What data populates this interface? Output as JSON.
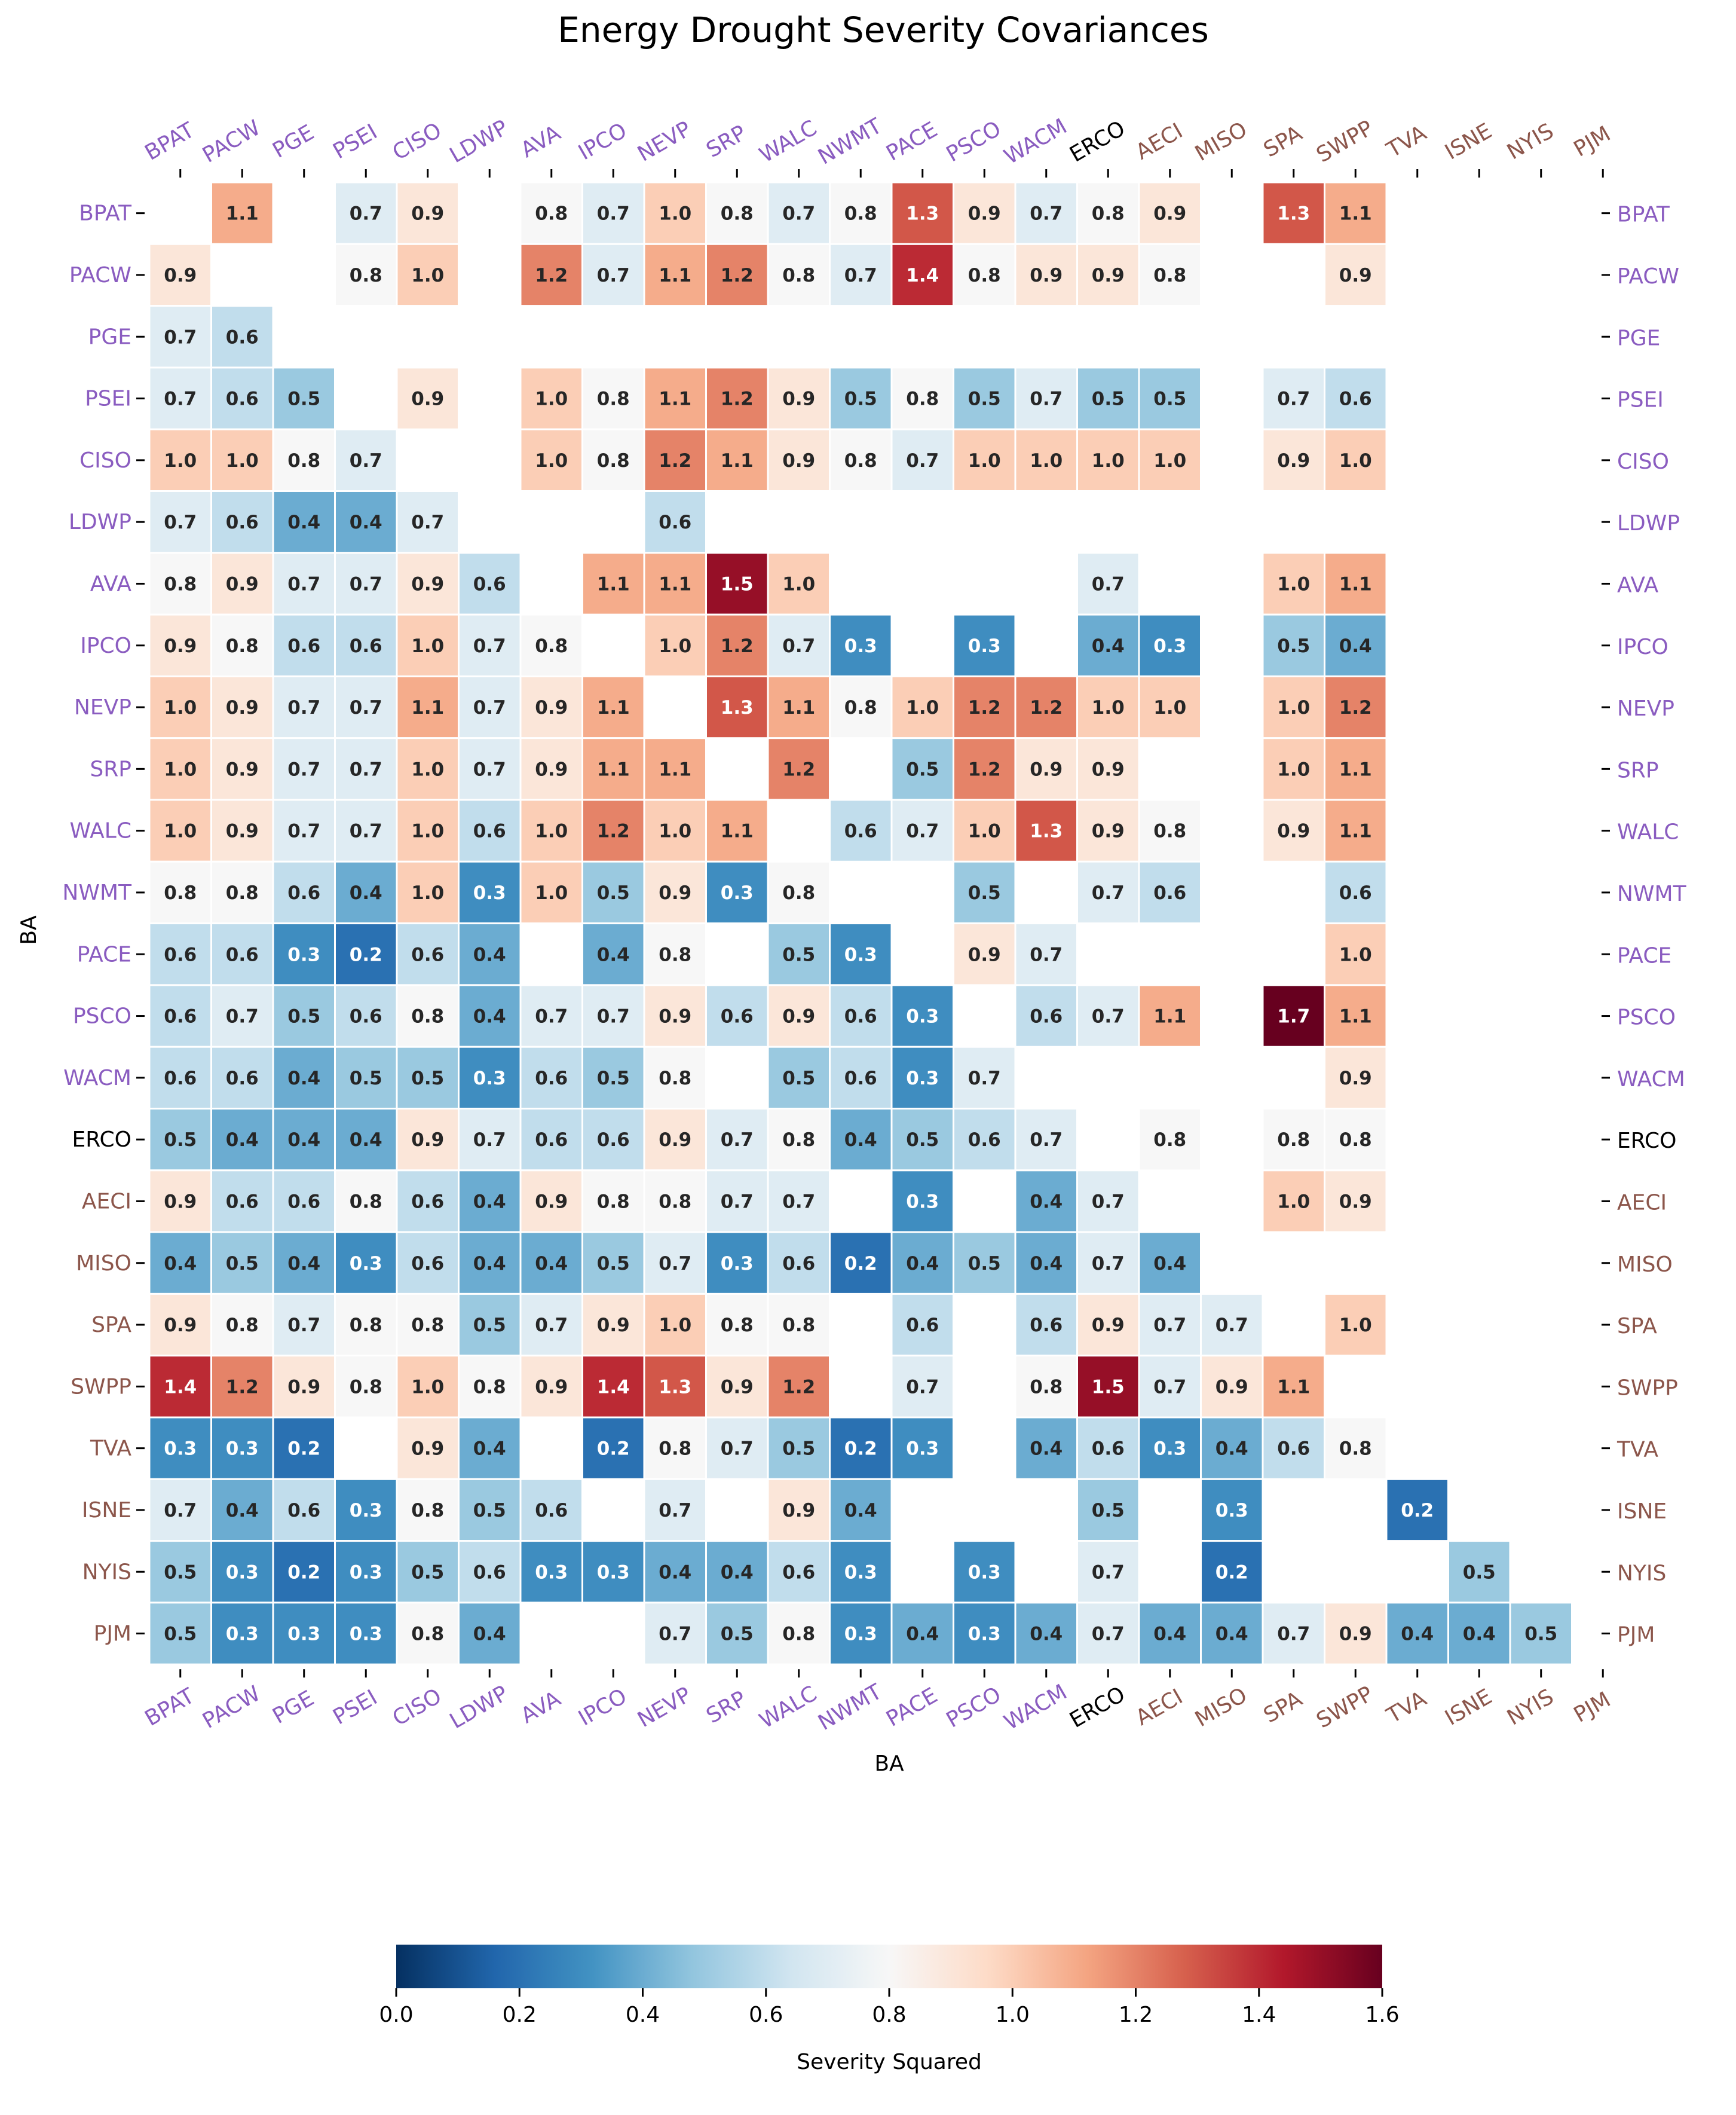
{
  "chart_data": {
    "type": "heatmap",
    "title": "Energy Drought Severity Covariances",
    "xlabel": "BA",
    "ylabel": "BA",
    "labels": [
      "BPAT",
      "PACW",
      "PGE",
      "PSEI",
      "CISO",
      "LDWP",
      "AVA",
      "IPCO",
      "NEVP",
      "SRP",
      "WALC",
      "NWMT",
      "PACE",
      "PSCO",
      "WACM",
      "ERCO",
      "AECI",
      "MISO",
      "SPA",
      "SWPP",
      "TVA",
      "ISNE",
      "NYIS",
      "PJM"
    ],
    "label_colors": [
      "#8a5cc0",
      "#8a5cc0",
      "#8a5cc0",
      "#8a5cc0",
      "#8a5cc0",
      "#8a5cc0",
      "#8a5cc0",
      "#8a5cc0",
      "#8a5cc0",
      "#8a5cc0",
      "#8a5cc0",
      "#8a5cc0",
      "#8a5cc0",
      "#8a5cc0",
      "#8a5cc0",
      "#000000",
      "#8c564b",
      "#8c564b",
      "#8c564b",
      "#8c564b",
      "#8c564b",
      "#8c564b",
      "#8c564b",
      "#8c564b"
    ],
    "value_format": "1 decimal",
    "matrix": [
      [
        null,
        1.1,
        null,
        0.7,
        0.9,
        null,
        0.8,
        0.7,
        1.0,
        0.8,
        0.7,
        0.8,
        1.3,
        0.9,
        0.7,
        0.8,
        0.9,
        null,
        1.3,
        1.1,
        null,
        null,
        null,
        null
      ],
      [
        0.9,
        null,
        null,
        0.8,
        1.0,
        null,
        1.2,
        0.7,
        1.1,
        1.2,
        0.8,
        0.7,
        1.4,
        0.8,
        0.9,
        0.9,
        0.8,
        null,
        null,
        0.9,
        null,
        null,
        null,
        null
      ],
      [
        0.7,
        0.6,
        null,
        null,
        null,
        null,
        null,
        null,
        null,
        null,
        null,
        null,
        null,
        null,
        null,
        null,
        null,
        null,
        null,
        null,
        null,
        null,
        null,
        null
      ],
      [
        0.7,
        0.6,
        0.5,
        null,
        0.9,
        null,
        1.0,
        0.8,
        1.1,
        1.2,
        0.9,
        0.5,
        0.8,
        0.5,
        0.7,
        0.5,
        0.5,
        null,
        0.7,
        0.6,
        null,
        null,
        null,
        null
      ],
      [
        1.0,
        1.0,
        0.8,
        0.7,
        null,
        null,
        1.0,
        0.8,
        1.2,
        1.1,
        0.9,
        0.8,
        0.7,
        1.0,
        1.0,
        1.0,
        1.0,
        null,
        0.9,
        1.0,
        null,
        null,
        null,
        null
      ],
      [
        0.7,
        0.6,
        0.4,
        0.4,
        0.7,
        null,
        null,
        null,
        0.6,
        null,
        null,
        null,
        null,
        null,
        null,
        null,
        null,
        null,
        null,
        null,
        null,
        null,
        null,
        null
      ],
      [
        0.8,
        0.9,
        0.7,
        0.7,
        0.9,
        0.6,
        null,
        1.1,
        1.1,
        1.5,
        1.0,
        null,
        null,
        null,
        null,
        0.7,
        null,
        null,
        1.0,
        1.1,
        null,
        null,
        null,
        null
      ],
      [
        0.9,
        0.8,
        0.6,
        0.6,
        1.0,
        0.7,
        0.8,
        null,
        1.0,
        1.2,
        0.7,
        0.3,
        null,
        0.3,
        null,
        0.4,
        0.3,
        null,
        0.5,
        0.4,
        null,
        null,
        null,
        null
      ],
      [
        1.0,
        0.9,
        0.7,
        0.7,
        1.1,
        0.7,
        0.9,
        1.1,
        null,
        1.3,
        1.1,
        0.8,
        1.0,
        1.2,
        1.2,
        1.0,
        1.0,
        null,
        1.0,
        1.2,
        null,
        null,
        null,
        null
      ],
      [
        1.0,
        0.9,
        0.7,
        0.7,
        1.0,
        0.7,
        0.9,
        1.1,
        1.1,
        null,
        1.2,
        null,
        0.5,
        1.2,
        0.9,
        0.9,
        null,
        null,
        1.0,
        1.1,
        null,
        null,
        null,
        null
      ],
      [
        1.0,
        0.9,
        0.7,
        0.7,
        1.0,
        0.6,
        1.0,
        1.2,
        1.0,
        1.1,
        null,
        0.6,
        0.7,
        1.0,
        1.3,
        0.9,
        0.8,
        null,
        0.9,
        1.1,
        null,
        null,
        null,
        null
      ],
      [
        0.8,
        0.8,
        0.6,
        0.4,
        1.0,
        0.3,
        1.0,
        0.5,
        0.9,
        0.3,
        0.8,
        null,
        null,
        0.5,
        null,
        0.7,
        0.6,
        null,
        null,
        0.6,
        null,
        null,
        null,
        null
      ],
      [
        0.6,
        0.6,
        0.3,
        0.2,
        0.6,
        0.4,
        null,
        0.4,
        0.8,
        null,
        0.5,
        0.3,
        null,
        0.9,
        0.7,
        null,
        null,
        null,
        null,
        1.0,
        null,
        null,
        null,
        null
      ],
      [
        0.6,
        0.7,
        0.5,
        0.6,
        0.8,
        0.4,
        0.7,
        0.7,
        0.9,
        0.6,
        0.9,
        0.6,
        0.3,
        null,
        0.6,
        0.7,
        1.1,
        null,
        1.7,
        1.1,
        null,
        null,
        null,
        null
      ],
      [
        0.6,
        0.6,
        0.4,
        0.5,
        0.5,
        0.3,
        0.6,
        0.5,
        0.8,
        null,
        0.5,
        0.6,
        0.3,
        0.7,
        null,
        null,
        null,
        null,
        null,
        0.9,
        null,
        null,
        null,
        null
      ],
      [
        0.5,
        0.4,
        0.4,
        0.4,
        0.9,
        0.7,
        0.6,
        0.6,
        0.9,
        0.7,
        0.8,
        0.4,
        0.5,
        0.6,
        0.7,
        null,
        0.8,
        null,
        0.8,
        0.8,
        null,
        null,
        null,
        null
      ],
      [
        0.9,
        0.6,
        0.6,
        0.8,
        0.6,
        0.4,
        0.9,
        0.8,
        0.8,
        0.7,
        0.7,
        null,
        0.3,
        null,
        0.4,
        0.7,
        null,
        null,
        1.0,
        0.9,
        null,
        null,
        null,
        null
      ],
      [
        0.4,
        0.5,
        0.4,
        0.3,
        0.6,
        0.4,
        0.4,
        0.5,
        0.7,
        0.3,
        0.6,
        0.2,
        0.4,
        0.5,
        0.4,
        0.7,
        0.4,
        null,
        null,
        null,
        null,
        null,
        null,
        null
      ],
      [
        0.9,
        0.8,
        0.7,
        0.8,
        0.8,
        0.5,
        0.7,
        0.9,
        1.0,
        0.8,
        0.8,
        null,
        0.6,
        null,
        0.6,
        0.9,
        0.7,
        0.7,
        null,
        1.0,
        null,
        null,
        null,
        null
      ],
      [
        1.4,
        1.2,
        0.9,
        0.8,
        1.0,
        0.8,
        0.9,
        1.4,
        1.3,
        0.9,
        1.2,
        null,
        0.7,
        null,
        0.8,
        1.5,
        0.7,
        0.9,
        1.1,
        null,
        null,
        null,
        null,
        null
      ],
      [
        0.3,
        0.3,
        0.2,
        null,
        0.9,
        0.4,
        null,
        0.2,
        0.8,
        0.7,
        0.5,
        0.2,
        0.3,
        null,
        0.4,
        0.6,
        0.3,
        0.4,
        0.6,
        0.8,
        null,
        null,
        null,
        null
      ],
      [
        0.7,
        0.4,
        0.6,
        0.3,
        0.8,
        0.5,
        0.6,
        null,
        0.7,
        null,
        0.9,
        0.4,
        null,
        null,
        null,
        0.5,
        null,
        0.3,
        null,
        null,
        0.2,
        null,
        null,
        null
      ],
      [
        0.5,
        0.3,
        0.2,
        0.3,
        0.5,
        0.6,
        0.3,
        0.3,
        0.4,
        0.4,
        0.6,
        0.3,
        null,
        0.3,
        null,
        0.7,
        null,
        0.2,
        null,
        null,
        null,
        0.5,
        null,
        null
      ],
      [
        0.5,
        0.3,
        0.3,
        0.3,
        0.8,
        0.4,
        null,
        null,
        0.7,
        0.5,
        0.8,
        0.3,
        0.4,
        0.3,
        0.4,
        0.7,
        0.4,
        0.4,
        0.7,
        0.9,
        0.4,
        0.4,
        0.5,
        null
      ]
    ],
    "colorbar": {
      "label": "Severity Squared",
      "colormap": "RdBu_r",
      "vmin": 0.0,
      "vmax": 1.6,
      "ticks": [
        "0.0",
        "0.2",
        "0.4",
        "0.6",
        "0.8",
        "1.0",
        "1.2",
        "1.4",
        "1.6"
      ]
    }
  }
}
